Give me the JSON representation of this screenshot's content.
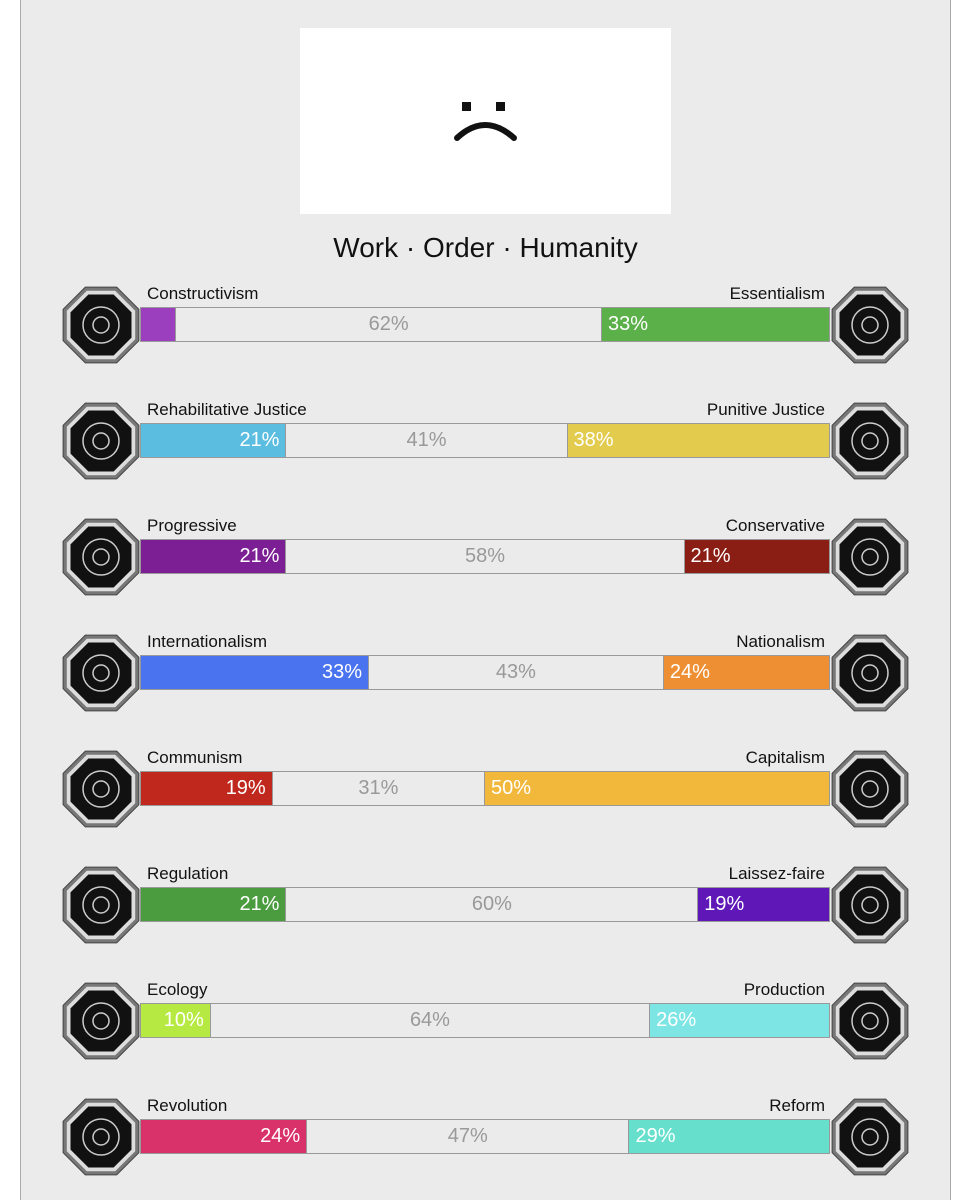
{
  "title": "Work · Order · Humanity",
  "rows": [
    {
      "left": {
        "name": "Constructivism",
        "value": 5,
        "color": "#9b3fbf"
      },
      "center": {
        "value": 62,
        "label": "62%"
      },
      "right": {
        "name": "Essentialism",
        "value": 33,
        "label": "33%",
        "color": "#5bb04a"
      }
    },
    {
      "left": {
        "name": "Rehabilitative Justice",
        "value": 21,
        "label": "21%",
        "color": "#5bbde0"
      },
      "center": {
        "value": 41,
        "label": "41%"
      },
      "right": {
        "name": "Punitive Justice",
        "value": 38,
        "label": "38%",
        "color": "#e2cb4d"
      }
    },
    {
      "left": {
        "name": "Progressive",
        "value": 21,
        "label": "21%",
        "color": "#7d1f94"
      },
      "center": {
        "value": 58,
        "label": "58%"
      },
      "right": {
        "name": "Conservative",
        "value": 21,
        "label": "21%",
        "color": "#8a1d14"
      }
    },
    {
      "left": {
        "name": "Internationalism",
        "value": 33,
        "label": "33%",
        "color": "#4a73ef"
      },
      "center": {
        "value": 43,
        "label": "43%"
      },
      "right": {
        "name": "Nationalism",
        "value": 24,
        "label": "24%",
        "color": "#ef8f33"
      }
    },
    {
      "left": {
        "name": "Communism",
        "value": 19,
        "label": "19%",
        "color": "#c0281e"
      },
      "center": {
        "value": 31,
        "label": "31%"
      },
      "right": {
        "name": "Capitalism",
        "value": 50,
        "label": "50%",
        "color": "#f2b83b"
      }
    },
    {
      "left": {
        "name": "Regulation",
        "value": 21,
        "label": "21%",
        "color": "#4a9c3f"
      },
      "center": {
        "value": 60,
        "label": "60%"
      },
      "right": {
        "name": "Laissez-faire",
        "value": 19,
        "label": "19%",
        "color": "#5f17b8"
      }
    },
    {
      "left": {
        "name": "Ecology",
        "value": 10,
        "label": "10%",
        "color": "#b6ea42"
      },
      "center": {
        "value": 64,
        "label": "64%"
      },
      "right": {
        "name": "Production",
        "value": 26,
        "label": "26%",
        "color": "#7ee5e5"
      }
    },
    {
      "left": {
        "name": "Revolution",
        "value": 24,
        "label": "24%",
        "color": "#d9316a"
      },
      "center": {
        "value": 47,
        "label": "47%"
      },
      "right": {
        "name": "Reform",
        "value": 29,
        "label": "29%",
        "color": "#66e0cc"
      }
    }
  ]
}
